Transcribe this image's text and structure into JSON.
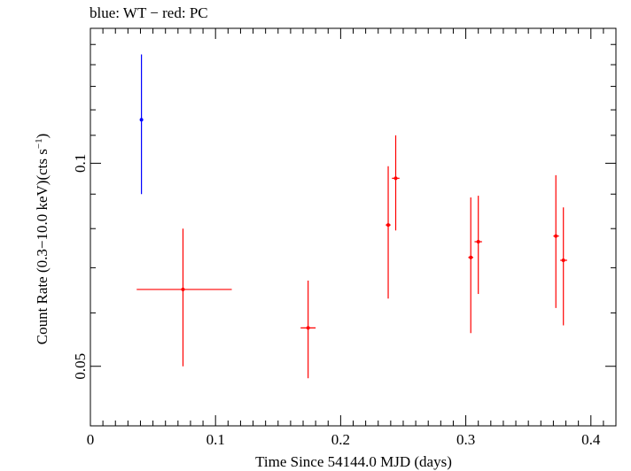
{
  "chart_data": {
    "type": "scatter",
    "title": "blue: WT − red: PC",
    "xlabel": "Time Since 54144.0 MJD (days)",
    "ylabel_main": "Count Rate (0.3−10.0 keV)(cts s",
    "ylabel_sup": "−1",
    "ylabel_close": ")",
    "xlim": [
      0,
      0.42
    ],
    "ylim": [
      0.0408,
      0.1585
    ],
    "yscale": "log",
    "x_ticks": [
      {
        "value": 0,
        "label": "0"
      },
      {
        "value": 0.1,
        "label": "0.1"
      },
      {
        "value": 0.2,
        "label": "0.2"
      },
      {
        "value": 0.3,
        "label": "0.3"
      },
      {
        "value": 0.4,
        "label": "0.4"
      }
    ],
    "y_ticks": [
      {
        "value": 0.05,
        "label": "0.05"
      },
      {
        "value": 0.1,
        "label": "0.1"
      }
    ],
    "grid": false,
    "series": [
      {
        "name": "WT",
        "color": "#0000ff",
        "points": [
          {
            "x": 0.0408,
            "xerr_lo": 0.0408,
            "xerr_hi": 0.0408,
            "y": 0.116,
            "ylo": 0.09,
            "yhi": 0.145
          }
        ]
      },
      {
        "name": "PC",
        "color": "#ff0000",
        "points": [
          {
            "x": 0.074,
            "xerr_lo": 0.037,
            "xerr_hi": 0.113,
            "y": 0.065,
            "ylo": 0.05,
            "yhi": 0.08
          },
          {
            "x": 0.174,
            "xerr_lo": 0.168,
            "xerr_hi": 0.18,
            "y": 0.057,
            "ylo": 0.048,
            "yhi": 0.067
          },
          {
            "x": 0.238,
            "xerr_lo": 0.236,
            "xerr_hi": 0.24,
            "y": 0.081,
            "ylo": 0.063,
            "yhi": 0.099
          },
          {
            "x": 0.244,
            "xerr_lo": 0.241,
            "xerr_hi": 0.247,
            "y": 0.095,
            "ylo": 0.0795,
            "yhi": 0.11
          },
          {
            "x": 0.304,
            "xerr_lo": 0.302,
            "xerr_hi": 0.306,
            "y": 0.0725,
            "ylo": 0.056,
            "yhi": 0.089
          },
          {
            "x": 0.31,
            "xerr_lo": 0.307,
            "xerr_hi": 0.313,
            "y": 0.0765,
            "ylo": 0.064,
            "yhi": 0.0895
          },
          {
            "x": 0.372,
            "xerr_lo": 0.37,
            "xerr_hi": 0.3745,
            "y": 0.078,
            "ylo": 0.061,
            "yhi": 0.096
          },
          {
            "x": 0.378,
            "xerr_lo": 0.3755,
            "xerr_hi": 0.381,
            "y": 0.0718,
            "ylo": 0.0575,
            "yhi": 0.086
          }
        ]
      }
    ]
  }
}
